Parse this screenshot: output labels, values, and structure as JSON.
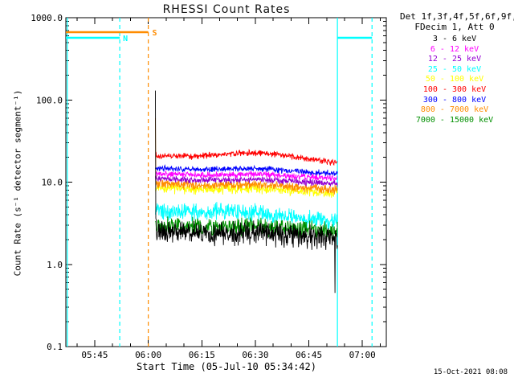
{
  "chart_data": {
    "type": "line",
    "title": "RHESSI Count Rates",
    "xlabel": "Start Time (05-Jul-10 05:34:42)",
    "ylabel": "Count Rate (s⁻¹ detector segment⁻¹)",
    "grid": false,
    "legend_position": "outside-right",
    "x_tick_labels": [
      "05:45",
      "06:00",
      "06:15",
      "06:30",
      "06:45",
      "07:00"
    ],
    "x_tick_minutes": [
      10.3,
      25.3,
      40.3,
      55.3,
      70.3,
      85.3
    ],
    "x_range_minutes": [
      2.2,
      92.0
    ],
    "y_tick_labels": [
      "0.1",
      "1.0",
      "10.0",
      "100.0",
      "1000.0"
    ],
    "y_tick_values": [
      0.1,
      1,
      10,
      100,
      1000
    ],
    "y_range": [
      0.1,
      1000
    ],
    "data_window_minutes": [
      27.3,
      78.3
    ],
    "draw_order": [
      4,
      7,
      2,
      1,
      6,
      5,
      3,
      8,
      0
    ],
    "series": [
      {
        "name": "3 - 6 keV",
        "color": "#000000",
        "noise": 0.38,
        "start_spike": 130,
        "end_drop": 0.45,
        "control": [
          [
            27.3,
            2.6
          ],
          [
            35,
            2.5
          ],
          [
            45,
            2.35
          ],
          [
            55,
            2.45
          ],
          [
            65,
            2.2
          ],
          [
            78.3,
            2.1
          ]
        ]
      },
      {
        "name": "6 - 12 keV",
        "color": "#FF00FF",
        "noise": 0.11,
        "control": [
          [
            27.3,
            12.8
          ],
          [
            40,
            12.2
          ],
          [
            55,
            12.5
          ],
          [
            70,
            11.6
          ],
          [
            78.3,
            11.2
          ]
        ]
      },
      {
        "name": "12 - 25 keV",
        "color": "#9400D3",
        "noise": 0.11,
        "control": [
          [
            27.3,
            11.0
          ],
          [
            40,
            10.5
          ],
          [
            55,
            10.8
          ],
          [
            70,
            10.0
          ],
          [
            78.3,
            9.7
          ]
        ]
      },
      {
        "name": "25 - 50 keV",
        "color": "#00FFFF",
        "noise": 0.3,
        "control": [
          [
            27.3,
            4.5
          ],
          [
            40,
            4.2
          ],
          [
            50,
            4.4
          ],
          [
            60,
            3.9
          ],
          [
            70,
            3.6
          ],
          [
            78.3,
            3.4
          ]
        ]
      },
      {
        "name": "50 - 100 keV",
        "color": "#FFFF00",
        "noise": 0.17,
        "control": [
          [
            27.3,
            8.6
          ],
          [
            40,
            8.2
          ],
          [
            55,
            8.5
          ],
          [
            70,
            7.7
          ],
          [
            78.3,
            7.3
          ]
        ]
      },
      {
        "name": "100 - 300 keV",
        "color": "#FF0000",
        "noise": 0.1,
        "control": [
          [
            27.3,
            21
          ],
          [
            38,
            20.5
          ],
          [
            50,
            22.5
          ],
          [
            58,
            22.5
          ],
          [
            68,
            20
          ],
          [
            78.3,
            17
          ]
        ]
      },
      {
        "name": "300 - 800 keV",
        "color": "#0000FF",
        "noise": 0.1,
        "control": [
          [
            27.3,
            14.8
          ],
          [
            40,
            14.2
          ],
          [
            55,
            14.6
          ],
          [
            70,
            13.4
          ],
          [
            78.3,
            12.6
          ]
        ]
      },
      {
        "name": "800 - 7000 keV",
        "color": "#FF8C00",
        "noise": 0.15,
        "start_spike": 60,
        "control": [
          [
            27.3,
            9.6
          ],
          [
            40,
            9.1
          ],
          [
            55,
            9.4
          ],
          [
            70,
            8.5
          ],
          [
            78.3,
            8.1
          ]
        ]
      },
      {
        "name": "7000 - 15000 keV",
        "color": "#009000",
        "noise": 0.3,
        "control": [
          [
            27.3,
            3.0
          ],
          [
            40,
            2.8
          ],
          [
            55,
            2.9
          ],
          [
            70,
            2.6
          ],
          [
            78.3,
            2.5
          ]
        ]
      }
    ],
    "markers": {
      "vlines": [
        {
          "name": "eclipse-line-left",
          "t": 2.6,
          "color": "#00FFFF",
          "style": "solid"
        },
        {
          "name": "night-end-line",
          "t": 17.3,
          "color": "#00FFFF",
          "style": "dashed"
        },
        {
          "name": "saa-end-line",
          "t": 25.3,
          "color": "#FF8C00",
          "style": "dashed"
        },
        {
          "name": "night-start-line",
          "t": 78.3,
          "color": "#00FFFF",
          "style": "solid"
        },
        {
          "name": "night-line-right",
          "t": 88.0,
          "color": "#00FFFF",
          "style": "dashed"
        }
      ],
      "hbars": [
        {
          "name": "saa-interval-bar",
          "t0": 2.2,
          "t1": 25.3,
          "y": 40,
          "color": "#FF8C00"
        },
        {
          "name": "night-interval-bar-left",
          "t0": 2.2,
          "t1": 17.3,
          "y": 47,
          "color": "#00FFFF"
        },
        {
          "name": "night-interval-bar-right",
          "t0": 78.3,
          "t1": 88.0,
          "y": 47,
          "color": "#00FFFF"
        }
      ],
      "labels": [
        {
          "name": "night-flag-label",
          "text": "N",
          "t": 18.2,
          "y": 51,
          "color": "#00FFFF"
        },
        {
          "name": "saa-flag-label",
          "text": "S",
          "t": 26.4,
          "y": 44,
          "color": "#FF8C00"
        }
      ]
    }
  },
  "legend": {
    "line1": "Det 1f,3f,4f,5f,6f,9f,",
    "line2": "FDecim 1, Att 0"
  },
  "footer": {
    "timestamp": "15-Oct-2021 08:08"
  }
}
